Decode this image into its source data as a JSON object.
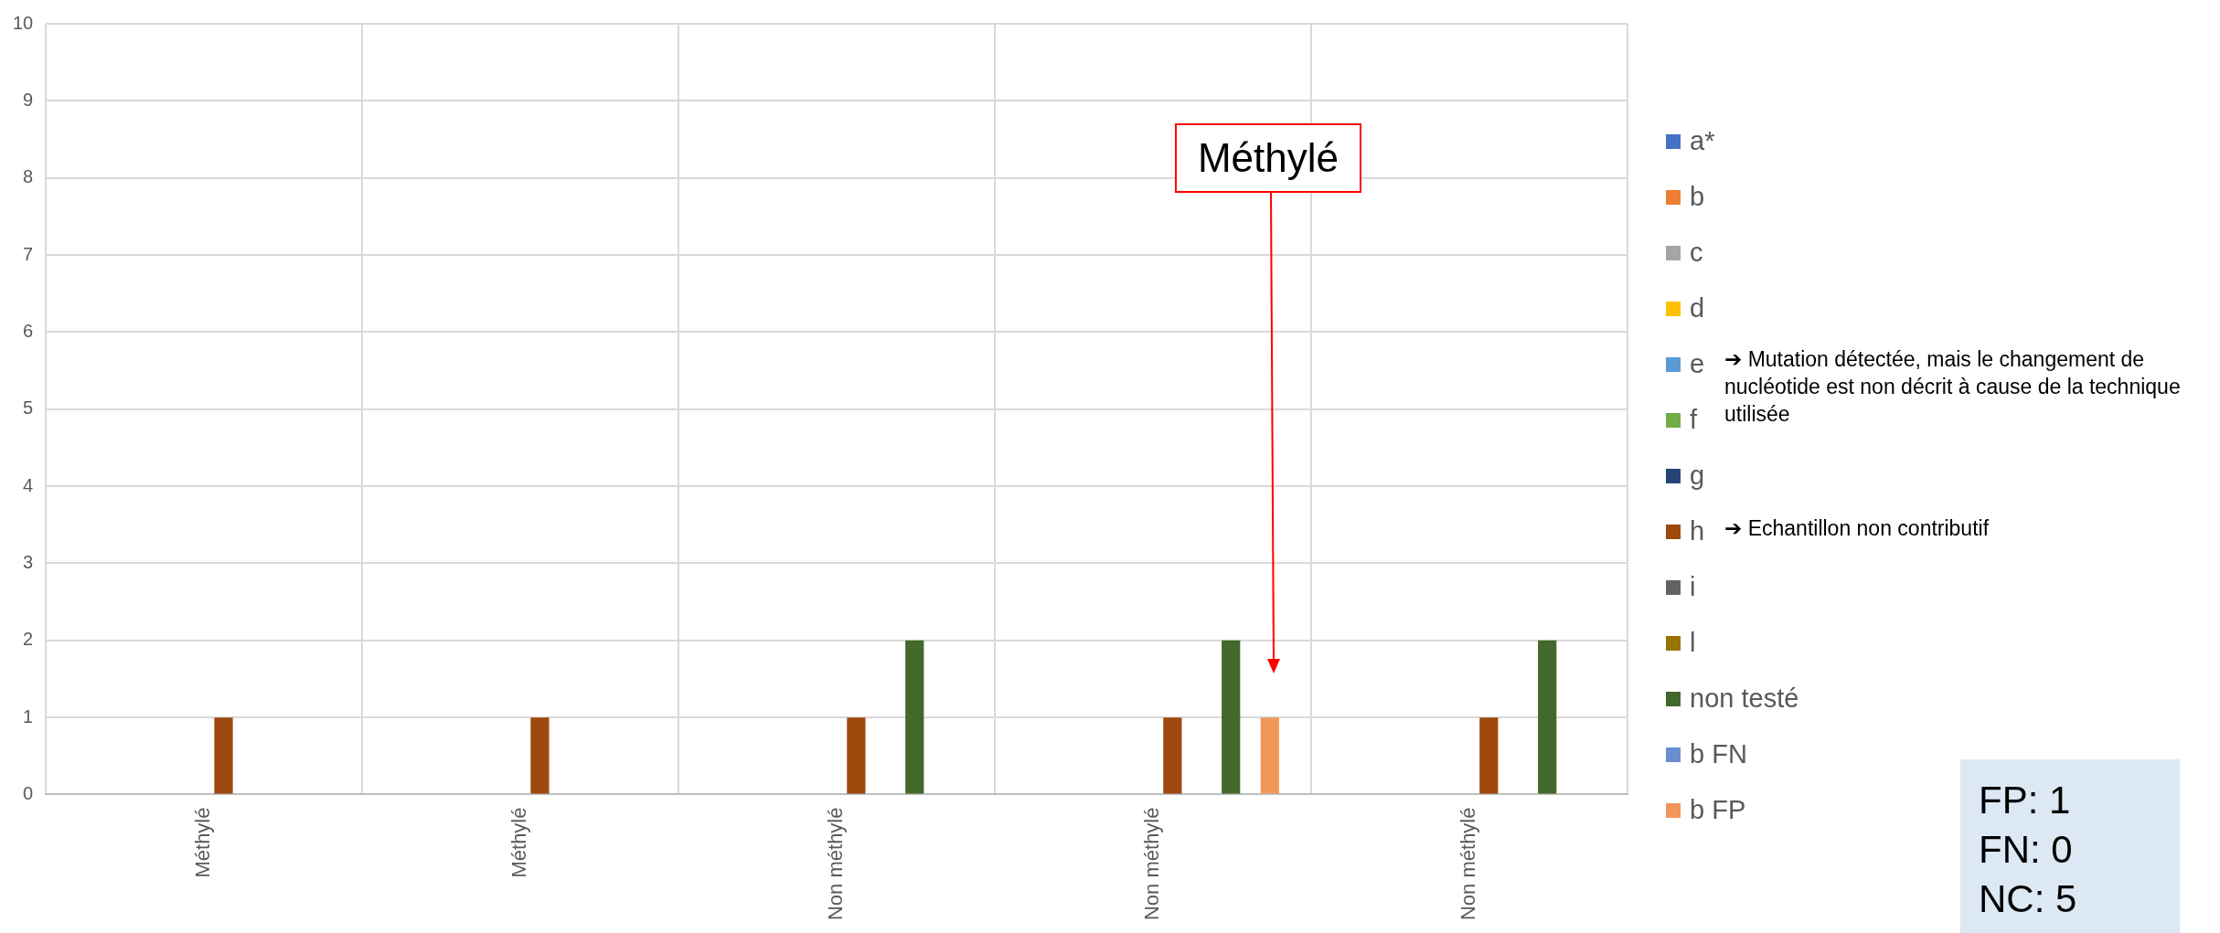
{
  "chart_data": {
    "type": "bar",
    "categories": [
      "Méthylé",
      "Méthylé",
      "Non méthylé",
      "Non méthylé",
      "Non méthylé"
    ],
    "series": [
      {
        "name": "a*",
        "color": "#4472c4",
        "values": [
          0,
          0,
          0,
          0,
          0
        ]
      },
      {
        "name": "b",
        "color": "#ed7d31",
        "values": [
          0,
          0,
          0,
          0,
          0
        ]
      },
      {
        "name": "c",
        "color": "#a5a5a5",
        "values": [
          0,
          0,
          0,
          0,
          0
        ]
      },
      {
        "name": "d",
        "color": "#ffc000",
        "values": [
          0,
          0,
          0,
          0,
          0
        ]
      },
      {
        "name": "e",
        "color": "#5b9bd5",
        "values": [
          0,
          0,
          0,
          0,
          0
        ]
      },
      {
        "name": "f",
        "color": "#70ad47",
        "values": [
          0,
          0,
          0,
          0,
          0
        ]
      },
      {
        "name": "g",
        "color": "#264478",
        "values": [
          0,
          0,
          0,
          0,
          0
        ]
      },
      {
        "name": "h",
        "color": "#9e480e",
        "values": [
          1,
          1,
          1,
          1,
          1
        ]
      },
      {
        "name": "i",
        "color": "#636363",
        "values": [
          0,
          0,
          0,
          0,
          0
        ]
      },
      {
        "name": "l",
        "color": "#997300",
        "values": [
          0,
          0,
          0,
          0,
          0
        ]
      },
      {
        "name": "non testé",
        "color": "#43682b",
        "values": [
          0,
          0,
          2,
          2,
          2
        ]
      },
      {
        "name": "b FN",
        "color": "#698ed0",
        "values": [
          0,
          0,
          0,
          0,
          0
        ]
      },
      {
        "name": "b FP",
        "color": "#f1975a",
        "values": [
          0,
          0,
          0,
          1,
          0
        ]
      }
    ],
    "ylim": [
      0,
      10
    ],
    "yticks": [
      0,
      1,
      2,
      3,
      4,
      5,
      6,
      7,
      8,
      9,
      10
    ],
    "grid": true,
    "legend": "right",
    "annotations": [
      "Méthylé",
      "➔ Mutation détectée, mais le changement de nucléotide est non décrit à cause de la technique utilisée",
      "➔ Echantillon non contributif",
      "FP: 1\nFN: 0\nNC: 5"
    ]
  }
}
